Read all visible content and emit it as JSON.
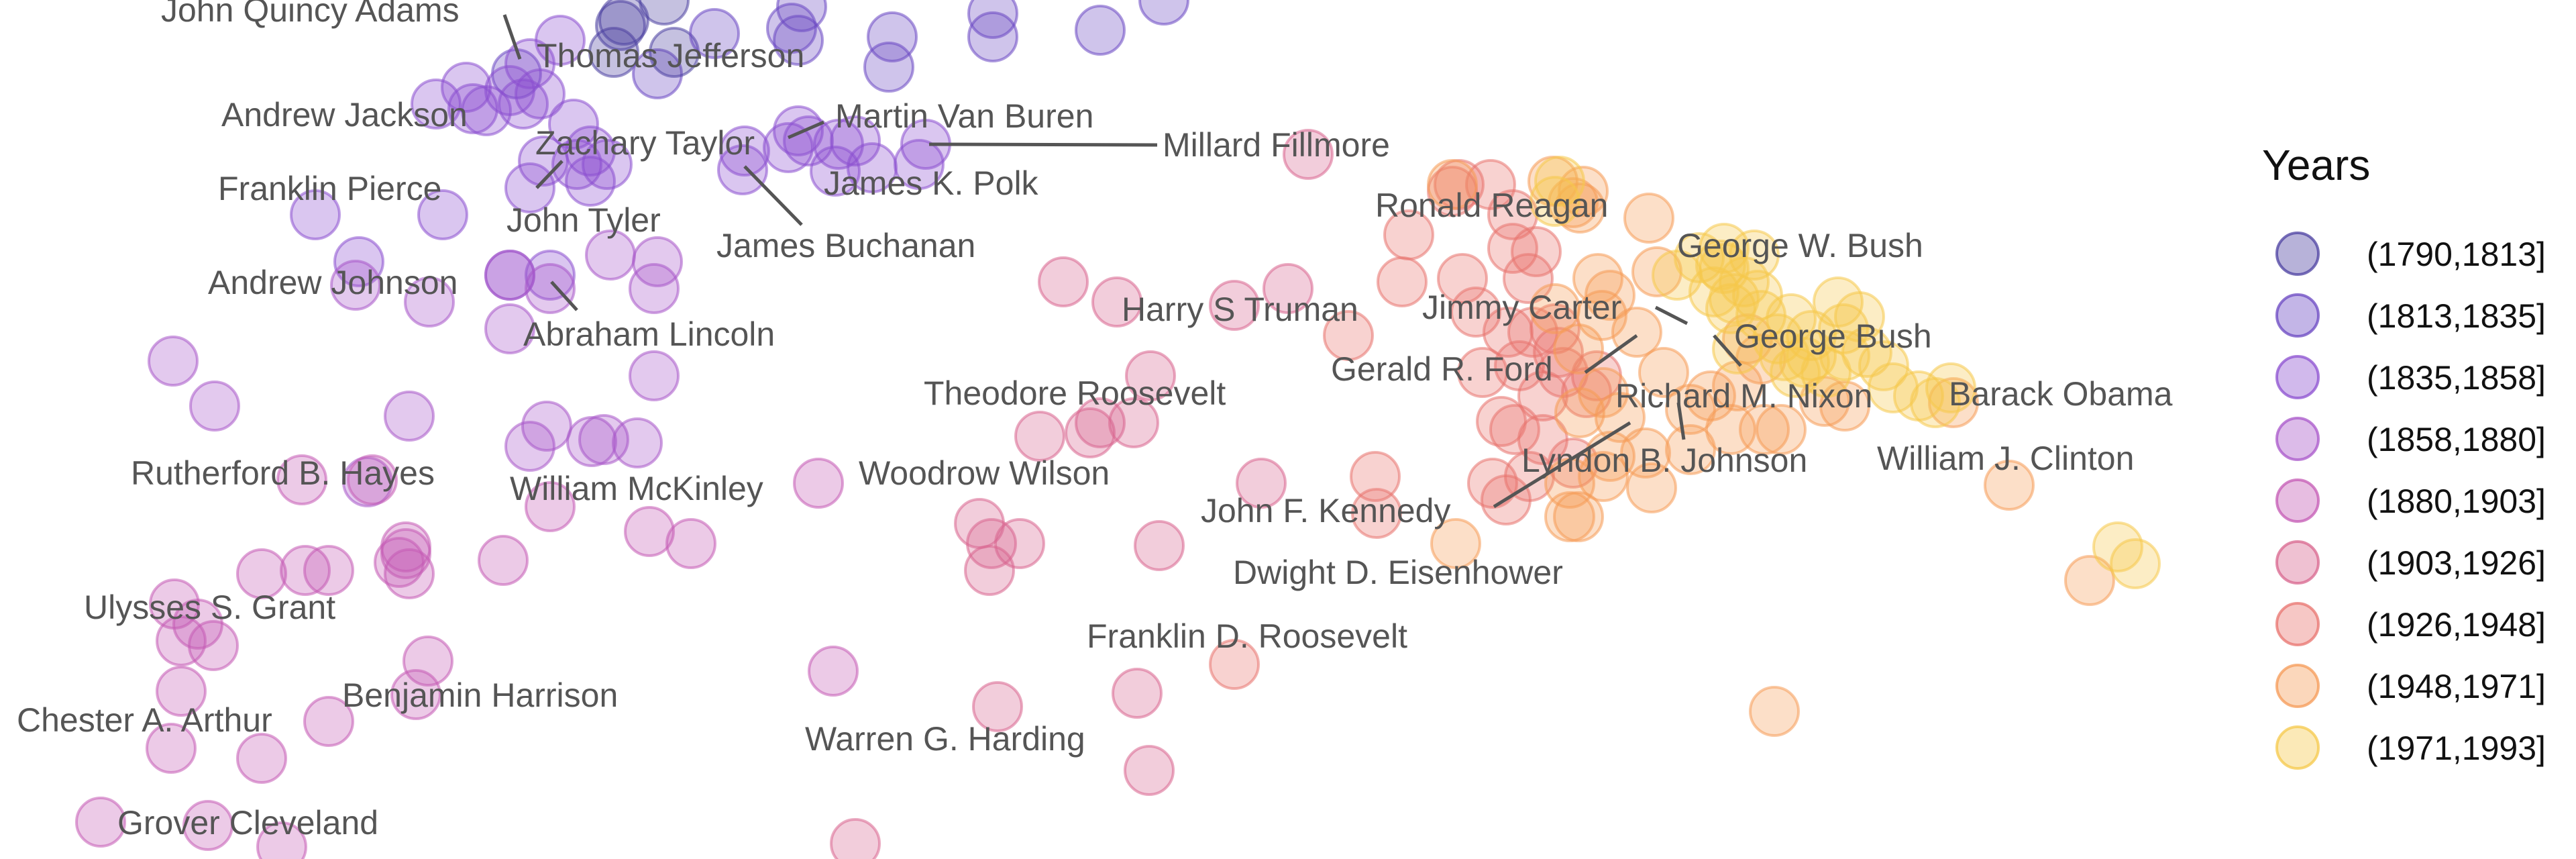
{
  "chart_data": {
    "type": "scatter",
    "title": "",
    "xlabel": "",
    "ylabel": "",
    "grid": false,
    "legend_placement": "right",
    "legend": {
      "title": "Years",
      "entries": [
        {
          "label": "(1790,1813]",
          "color": "#4b3fa0"
        },
        {
          "label": "(1813,1835]",
          "color": "#6a47c2"
        },
        {
          "label": "(1835,1858]",
          "color": "#8b4fd0"
        },
        {
          "label": "(1858,1880]",
          "color": "#a856c9"
        },
        {
          "label": "(1880,1903]",
          "color": "#c45ab4"
        },
        {
          "label": "(1903,1926]",
          "color": "#d8658e"
        },
        {
          "label": "(1926,1948]",
          "color": "#e8736e"
        },
        {
          "label": "(1948,1971]",
          "color": "#f59a55"
        },
        {
          "label": "(1971,1993]",
          "color": "#f6c84a"
        }
      ]
    },
    "labels": [
      "John Quincy Adams",
      "Thomas Jefferson",
      "Andrew Jackson",
      "Martin Van Buren",
      "Millard Fillmore",
      "Zachary Taylor",
      "Franklin Pierce",
      "James K. Polk",
      "John Tyler",
      "James Buchanan",
      "Andrew Johnson",
      "Abraham Lincoln",
      "Rutherford B. Hayes",
      "William McKinley",
      "Woodrow Wilson",
      "Theodore Roosevelt",
      "Ulysses S. Grant",
      "Benjamin Harrison",
      "Chester A. Arthur",
      "Grover Cleveland",
      "Warren G. Harding",
      "Franklin D. Roosevelt",
      "Harry S Truman",
      "Dwight D. Eisenhower",
      "John F. Kennedy",
      "Lyndon B. Johnson",
      "Richard M. Nixon",
      "Gerald R. Ford",
      "Jimmy Carter",
      "Ronald Reagan",
      "George Bush",
      "George W. Bush",
      "William J. Clinton",
      "Barack Obama"
    ]
  }
}
